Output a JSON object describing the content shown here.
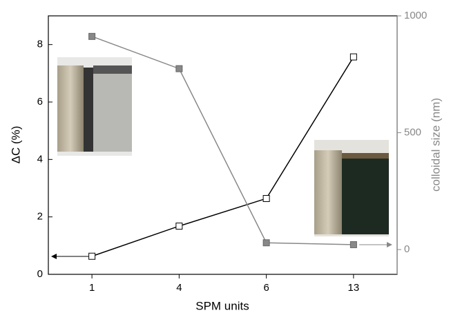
{
  "chart_data": {
    "type": "line",
    "x_label": "SPM units",
    "y_label": "ΔC (%)",
    "y2_label": "colloidal size (nm)",
    "categories": [
      "1",
      "4",
      "6",
      "13"
    ],
    "series": [
      {
        "color": "#000000",
        "marker": "open-square",
        "values": [
          0.63,
          1.68,
          2.64,
          7.57
        ]
      },
      {
        "color": "#888888",
        "marker": "filled-square",
        "axis": "y2",
        "values": [
          912,
          774,
          29,
          21
        ]
      }
    ],
    "ylim": [
      0,
      9
    ],
    "yticks": [
      0,
      2,
      4,
      6,
      8
    ],
    "y2lim": [
      -106,
      1000
    ],
    "y2ticks": [
      0,
      500,
      1000
    ],
    "y2color": "#888888"
  }
}
